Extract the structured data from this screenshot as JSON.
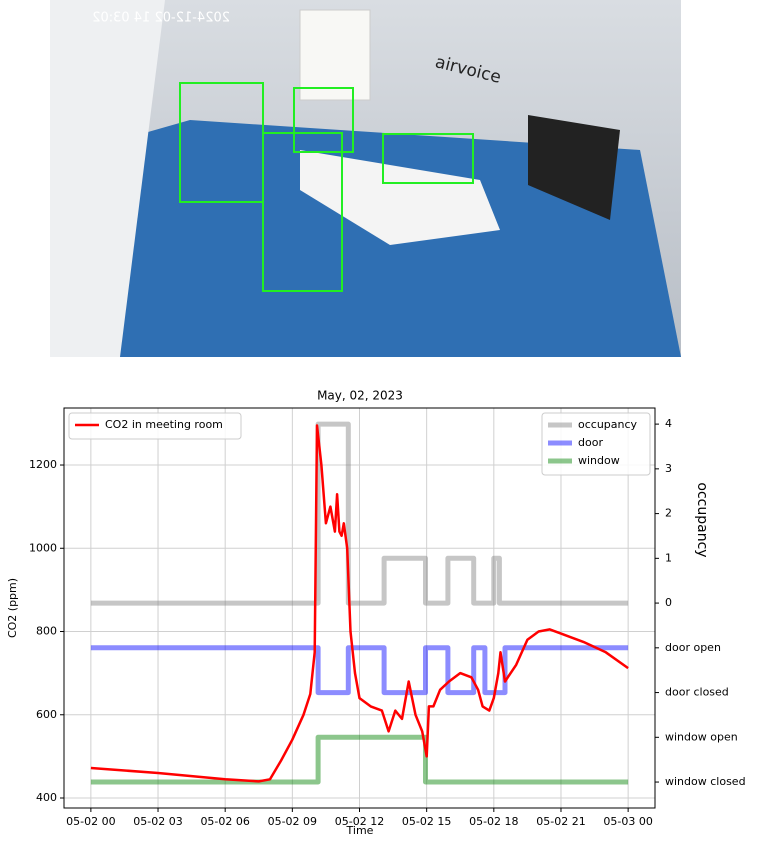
{
  "image": {
    "caption": "airvoice",
    "timestamp": "2024-12-02 14 03:02"
  },
  "chart_data": {
    "type": "line",
    "title": "May, 02, 2023",
    "x_label": "Time",
    "y_label": "CO2 (ppm)",
    "y2_label": "occupancy",
    "xlim": [
      -1.2,
      25.2
    ],
    "xticks": [
      {
        "value": 0,
        "label": "05-02 00"
      },
      {
        "value": 3,
        "label": "05-02 03"
      },
      {
        "value": 6,
        "label": "05-02 06"
      },
      {
        "value": 9,
        "label": "05-02 09"
      },
      {
        "value": 12,
        "label": "05-02 12"
      },
      {
        "value": 15,
        "label": "05-02 15"
      },
      {
        "value": 18,
        "label": "05-02 18"
      },
      {
        "value": 21,
        "label": "05-02 21"
      },
      {
        "value": 24,
        "label": "05-03 00"
      }
    ],
    "ylim": [
      376,
      1337
    ],
    "yticks": [
      400,
      600,
      800,
      1000,
      1200
    ],
    "y2lim": [
      -4.58,
      4.36
    ],
    "y2ticks": [
      4,
      3,
      2,
      1,
      0,
      {
        "value": -1,
        "label": "door open"
      },
      {
        "value": -2,
        "label": "door closed"
      },
      {
        "value": -3,
        "label": "window open"
      },
      {
        "value": -4,
        "label": "window closed"
      }
    ],
    "grid": true,
    "series": [
      {
        "name": "CO2 in meeting room",
        "color": "#ff0000",
        "legend": "upper left",
        "x": [
          0,
          3,
          6,
          7.5,
          8,
          8.5,
          9,
          9.5,
          9.8,
          10,
          10.1,
          10.3,
          10.5,
          10.7,
          10.9,
          11,
          11.1,
          11.2,
          11.3,
          11.45,
          11.6,
          11.8,
          12,
          12.5,
          13,
          13.3,
          13.6,
          13.9,
          14.2,
          14.5,
          14.8,
          15,
          15.1,
          15.3,
          15.6,
          16,
          16.5,
          17,
          17.3,
          17.5,
          17.8,
          18,
          18.2,
          18.3,
          18.5,
          19,
          19.5,
          20,
          20.5,
          21,
          22,
          23,
          24
        ],
        "values": [
          472,
          460,
          445,
          440,
          445,
          490,
          540,
          600,
          650,
          750,
          1295,
          1200,
          1060,
          1100,
          1040,
          1130,
          1040,
          1030,
          1060,
          1000,
          800,
          700,
          640,
          620,
          610,
          560,
          610,
          590,
          680,
          600,
          560,
          500,
          620,
          620,
          660,
          680,
          700,
          690,
          660,
          620,
          610,
          640,
          700,
          750,
          680,
          720,
          780,
          800,
          805,
          795,
          775,
          750,
          712
        ]
      },
      {
        "name": "occupancy",
        "color": "#808080",
        "legend": "upper right",
        "axis": "y2",
        "x": [
          0,
          10.15,
          10.15,
          11.5,
          11.5,
          13.1,
          13.1,
          14.95,
          14.95,
          15.95,
          15.95,
          17.1,
          17.1,
          18.0,
          18.0,
          18.25,
          18.25,
          24
        ],
        "values": [
          0,
          0,
          4,
          4,
          0,
          0,
          1,
          1,
          0,
          0,
          1,
          1,
          0,
          0,
          1,
          1,
          0,
          0
        ]
      },
      {
        "name": "door",
        "color": "#0000ff",
        "legend": "upper right",
        "axis": "y2",
        "x": [
          0,
          10.15,
          10.15,
          11.5,
          11.5,
          13.1,
          13.1,
          14.95,
          14.95,
          15.95,
          15.95,
          17.1,
          17.1,
          17.6,
          17.6,
          18.5,
          18.5,
          24
        ],
        "values": [
          -1,
          -1,
          -2,
          -2,
          -1,
          -1,
          -2,
          -2,
          -1,
          -1,
          -2,
          -2,
          -1,
          -1,
          -2,
          -2,
          -1,
          -1
        ]
      },
      {
        "name": "window",
        "color": "#008000",
        "legend": "upper right",
        "axis": "y2",
        "x": [
          0,
          10.15,
          10.15,
          14.95,
          14.95,
          24
        ],
        "values": [
          -4,
          -4,
          -3,
          -3,
          -4,
          -4
        ]
      }
    ]
  }
}
